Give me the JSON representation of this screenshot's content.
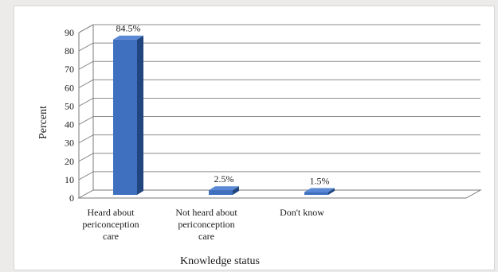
{
  "chart_data": {
    "type": "bar",
    "categories": [
      [
        "Heard about",
        "periconception",
        "care"
      ],
      [
        "Not heard about",
        "periconception",
        "care"
      ],
      [
        "Don't know"
      ]
    ],
    "values": [
      84.5,
      2.5,
      1.5
    ],
    "data_labels": [
      "84.5%",
      "2.5%",
      "1.5%"
    ],
    "xlabel": "Knowledge status",
    "ylabel": "Percent",
    "ylim": [
      0,
      90
    ],
    "yticks": [
      "0",
      "10",
      "20",
      "30",
      "40",
      "50",
      "60",
      "70",
      "80",
      "90"
    ],
    "grid": true,
    "style": "3d-column",
    "colors": {
      "bar_front": "#3f6fbf",
      "bar_side": "#21457f",
      "bar_top": "#5b88d4",
      "grid": "#8c8c8c",
      "axis": "#7a7a7a"
    }
  }
}
